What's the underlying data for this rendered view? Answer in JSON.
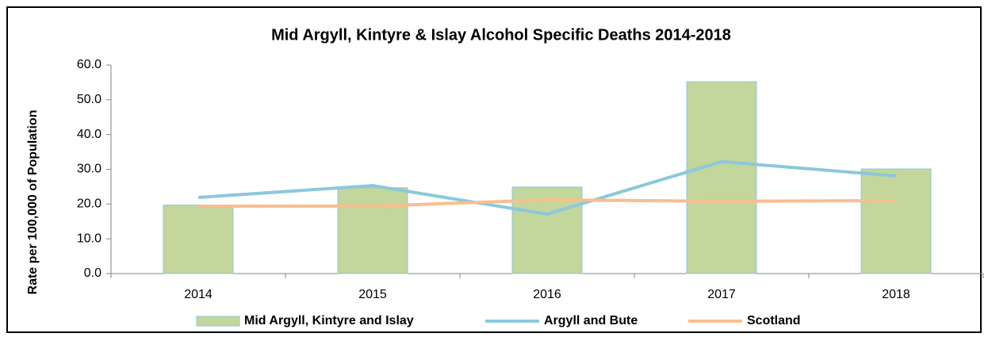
{
  "chart_data": {
    "type": "bar",
    "title": "Mid Argyll, Kintyre & Islay Alcohol Specific Deaths 2014-2018",
    "y_label": "Rate per 100,000 of Population",
    "categories": [
      "2014",
      "2015",
      "2016",
      "2017",
      "2018"
    ],
    "series": [
      {
        "name": "Mid Argyll, Kintyre and Islay",
        "type": "bar",
        "color": "#c3d69b",
        "values": [
          19.7,
          24.7,
          24.9,
          55.2,
          30.1
        ]
      },
      {
        "name": "Argyll and Bute",
        "type": "line",
        "color": "#8cc8dc",
        "values": [
          21.9,
          25.3,
          17.1,
          32.2,
          28.1
        ]
      },
      {
        "name": "Scotland",
        "type": "line",
        "color": "#f9be8f",
        "values": [
          19.4,
          19.4,
          21.2,
          20.8,
          21.0
        ]
      }
    ],
    "ylim": [
      0,
      60
    ],
    "yticks": [
      {
        "value": 0,
        "label": "0.0"
      },
      {
        "value": 10,
        "label": "10.0"
      },
      {
        "value": 20,
        "label": "20.0"
      },
      {
        "value": 30,
        "label": "30.0"
      },
      {
        "value": 40,
        "label": "40.0"
      },
      {
        "value": 50,
        "label": "50.0"
      },
      {
        "value": 60,
        "label": "60.0"
      }
    ],
    "legend": "bottom"
  }
}
